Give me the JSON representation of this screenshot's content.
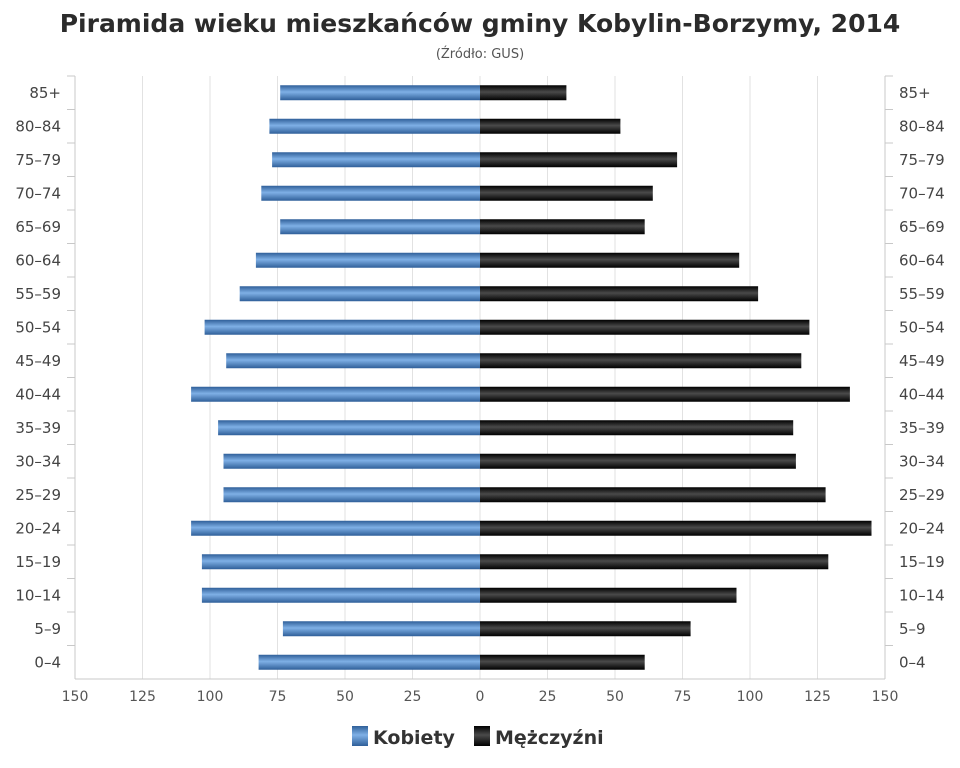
{
  "chart_data": {
    "type": "bar",
    "orientation": "horizontal",
    "title": "Piramida wieku mieszkańców gminy Kobylin-Borzymy, 2014",
    "subtitle": "(Źródło: GUS)",
    "categories": [
      "85+",
      "80-84",
      "75-79",
      "70-74",
      "65-69",
      "60-64",
      "55-59",
      "50-54",
      "45-49",
      "40-44",
      "35-39",
      "30-34",
      "25-29",
      "20-24",
      "15-19",
      "10-14",
      "5-9",
      "0-4"
    ],
    "category_labels": [
      "85+",
      "80–84",
      "75–79",
      "70–74",
      "65–69",
      "60–64",
      "55–59",
      "50–54",
      "45–49",
      "40–44",
      "35–39",
      "30–34",
      "25–29",
      "20–24",
      "15–19",
      "10–14",
      "5–9",
      "0–4"
    ],
    "x_ticks": [
      "150",
      "125",
      "100",
      "75",
      "50",
      "25",
      "0",
      "25",
      "50",
      "75",
      "100",
      "125",
      "150"
    ],
    "xlim": [
      -150,
      150
    ],
    "grid": true,
    "legend_position": "bottom",
    "series": [
      {
        "name": "Kobiety",
        "color": "#4a7fbf",
        "values": [
          74,
          78,
          77,
          81,
          74,
          83,
          89,
          102,
          94,
          107,
          97,
          95,
          95,
          107,
          103,
          103,
          73,
          82
        ]
      },
      {
        "name": "Mężczyźni",
        "color": "#1a1a1a",
        "values": [
          32,
          52,
          73,
          64,
          61,
          96,
          103,
          122,
          119,
          137,
          116,
          117,
          128,
          145,
          129,
          95,
          78,
          61
        ]
      }
    ]
  }
}
